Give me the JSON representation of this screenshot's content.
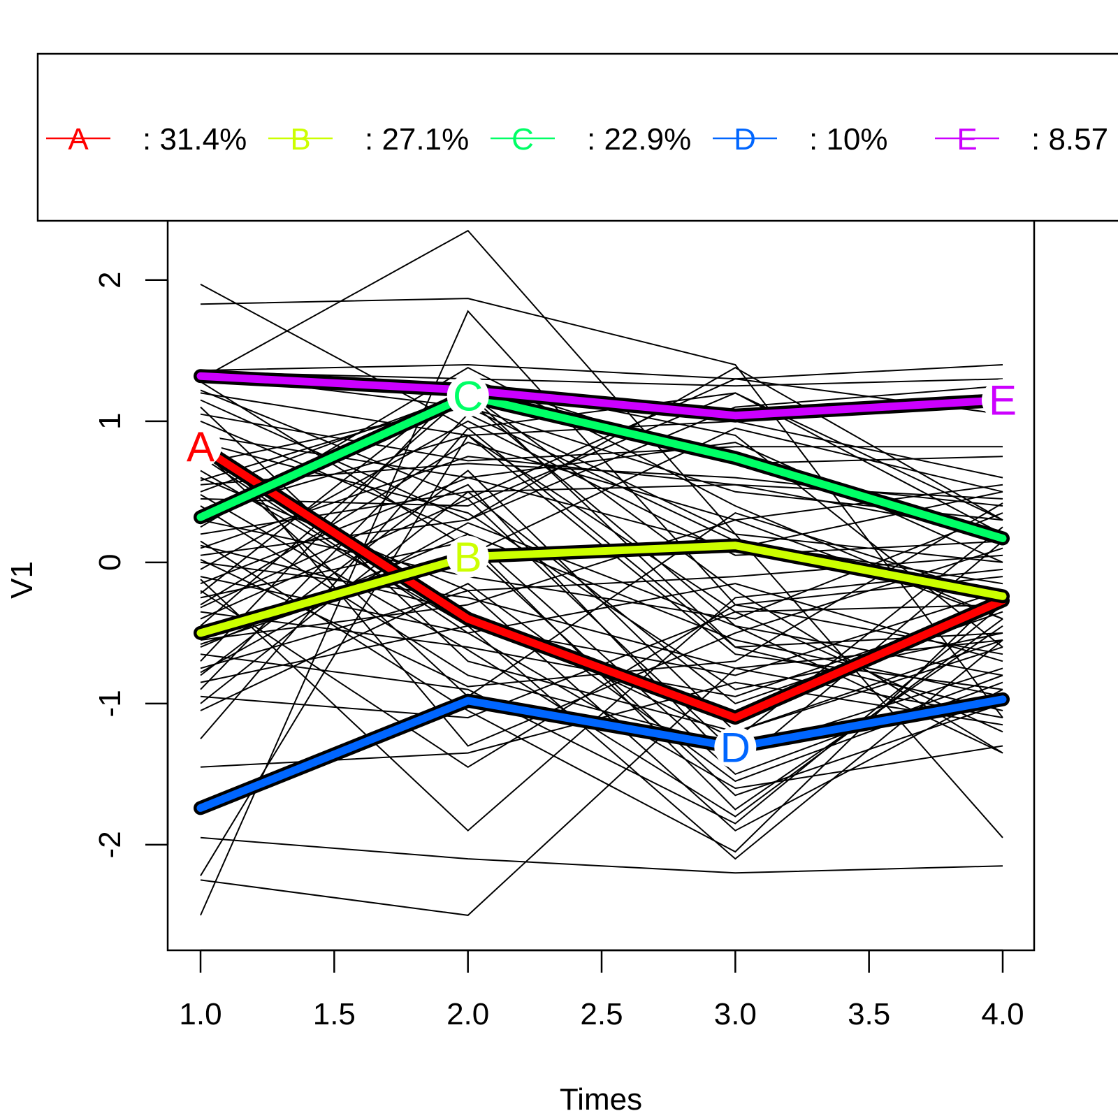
{
  "chart_data": {
    "type": "line",
    "xlabel": "Times",
    "ylabel": "V1",
    "x": [
      1,
      2,
      3,
      4
    ],
    "xlim": [
      1,
      4
    ],
    "ylim": [
      -2.55,
      2.4
    ],
    "x_ticks": [
      "1.0",
      "1.5",
      "2.0",
      "2.5",
      "3.0",
      "3.5",
      "4.0"
    ],
    "x_tick_values": [
      1.0,
      1.5,
      2.0,
      2.5,
      3.0,
      3.5,
      4.0
    ],
    "y_ticks": [
      "-2",
      "-1",
      "0",
      "1",
      "2"
    ],
    "y_tick_values": [
      -2,
      -1,
      0,
      1,
      2
    ],
    "grid": false,
    "legend_placement": "top",
    "legend": [
      {
        "label": "A",
        "text": ": 31.4%",
        "color": "#ff0000"
      },
      {
        "label": "B",
        "text": ": 27.1%",
        "color": "#ccff00"
      },
      {
        "label": "C",
        "text": ": 22.9%",
        "color": "#00ff66"
      },
      {
        "label": "D",
        "text": ":   10%",
        "color": "#0066ff"
      },
      {
        "label": "E",
        "text": ": 8.57",
        "color": "#cc00ff"
      }
    ],
    "clusters": [
      {
        "name": "A",
        "color": "#ff0000",
        "values": [
          0.82,
          -0.4,
          -1.1,
          -0.27
        ],
        "label_at": 1
      },
      {
        "name": "B",
        "color": "#ccff00",
        "values": [
          -0.5,
          0.04,
          0.12,
          -0.24
        ],
        "label_at": 2
      },
      {
        "name": "C",
        "color": "#00ff66",
        "values": [
          0.32,
          1.18,
          0.74,
          0.17
        ],
        "label_at": 2
      },
      {
        "name": "D",
        "color": "#0066ff",
        "values": [
          -1.74,
          -0.98,
          -1.31,
          -0.97
        ],
        "label_at": 3
      },
      {
        "name": "E",
        "color": "#cc00ff",
        "values": [
          1.32,
          1.22,
          1.04,
          1.15
        ],
        "label_at": 4
      }
    ],
    "trajectories": [
      [
        1.97,
        0.95,
        -0.6,
        -0.5
      ],
      [
        1.83,
        1.87,
        1.4,
        -1.1
      ],
      [
        1.3,
        2.35,
        0.2,
        -1.95
      ],
      [
        -2.5,
        1.78,
        -0.3,
        -0.1
      ],
      [
        1.36,
        1.4,
        1.3,
        1.4
      ],
      [
        1.35,
        1.3,
        1.25,
        1.3
      ],
      [
        1.33,
        1.1,
        0.5,
        0.3
      ],
      [
        1.2,
        0.9,
        -0.35,
        -0.3
      ],
      [
        1.1,
        -0.7,
        -1.2,
        -0.6
      ],
      [
        1.0,
        0.2,
        -1.5,
        -0.8
      ],
      [
        0.95,
        -1.3,
        -0.5,
        0.1
      ],
      [
        0.9,
        0.6,
        0.1,
        0.5
      ],
      [
        0.85,
        0.35,
        -0.9,
        -0.5
      ],
      [
        0.75,
        -0.5,
        -1.6,
        -1.3
      ],
      [
        0.7,
        1.1,
        0.2,
        0.0
      ],
      [
        0.6,
        -0.2,
        -1.9,
        -0.9
      ],
      [
        0.55,
        0.7,
        0.6,
        0.4
      ],
      [
        0.5,
        1.2,
        -0.2,
        -1.35
      ],
      [
        0.45,
        0.4,
        1.2,
        0.2
      ],
      [
        0.4,
        -0.8,
        -1.3,
        -1.0
      ],
      [
        0.35,
        0.9,
        1.0,
        0.6
      ],
      [
        0.3,
        -0.1,
        -0.4,
        0.35
      ],
      [
        0.25,
        1.38,
        0.4,
        -0.4
      ],
      [
        0.2,
        0.5,
        -1.0,
        -0.35
      ],
      [
        0.15,
        -1.05,
        -2.05,
        -0.2
      ],
      [
        0.1,
        0.75,
        0.55,
        0.45
      ],
      [
        0.05,
        0.3,
        1.38,
        0.3
      ],
      [
        0.0,
        -0.25,
        -0.75,
        -0.55
      ],
      [
        -0.05,
        1.0,
        0.05,
        0.15
      ],
      [
        -0.1,
        -0.5,
        -0.15,
        -0.7
      ],
      [
        -0.15,
        0.6,
        0.85,
        0.0
      ],
      [
        -0.2,
        -1.45,
        -0.3,
        -0.65
      ],
      [
        -0.25,
        0.15,
        -1.75,
        -0.45
      ],
      [
        -0.3,
        0.85,
        0.3,
        0.55
      ],
      [
        -0.35,
        -0.6,
        -0.95,
        -0.3
      ],
      [
        -0.4,
        0.45,
        -1.35,
        -0.75
      ],
      [
        -0.45,
        1.2,
        -0.6,
        -1.05
      ],
      [
        -0.55,
        -0.3,
        0.3,
        -0.4
      ],
      [
        -0.6,
        0.2,
        -0.55,
        -0.95
      ],
      [
        -0.65,
        -0.9,
        -1.85,
        -0.3
      ],
      [
        -0.7,
        1.3,
        0.7,
        0.75
      ],
      [
        -0.75,
        -0.2,
        -0.1,
        0.05
      ],
      [
        -0.8,
        0.65,
        -1.2,
        -0.55
      ],
      [
        -0.85,
        -0.45,
        -0.8,
        -0.2
      ],
      [
        -0.9,
        1.05,
        0.15,
        -0.15
      ],
      [
        -0.95,
        -1.1,
        -0.35,
        -1.2
      ],
      [
        -1.0,
        0.5,
        0.55,
        0.2
      ],
      [
        -1.05,
        -0.15,
        -1.55,
        -0.85
      ],
      [
        -1.25,
        0.95,
        1.2,
        0.3
      ],
      [
        -1.45,
        -1.35,
        -0.85,
        -1.15
      ],
      [
        -1.95,
        -2.1,
        -2.2,
        -2.15
      ],
      [
        -2.22,
        0.9,
        -0.65,
        -0.9
      ],
      [
        -2.25,
        -2.5,
        -0.75,
        -1.1
      ],
      [
        1.28,
        0.1,
        -1.65,
        -1.0
      ],
      [
        1.15,
        0.3,
        1.1,
        1.25
      ],
      [
        0.65,
        -0.45,
        -2.1,
        -0.55
      ],
      [
        -0.12,
        -1.9,
        -0.25,
        -0.05
      ],
      [
        0.58,
        1.15,
        -0.45,
        -0.8
      ],
      [
        -0.32,
        0.55,
        -1.45,
        0.15
      ],
      [
        0.8,
        -0.95,
        0.35,
        -0.25
      ],
      [
        -0.58,
        0.05,
        0.95,
        0.5
      ],
      [
        1.05,
        0.72,
        0.82,
        0.82
      ],
      [
        0.12,
        -0.35,
        -1.25,
        0.25
      ],
      [
        -0.22,
        1.28,
        0.9,
        -0.6
      ],
      [
        0.48,
        -0.62,
        -1.8,
        -0.4
      ],
      [
        -0.78,
        0.28,
        -0.45,
        -1.35
      ],
      [
        1.22,
        0.45,
        1.3,
        1.05
      ],
      [
        0.02,
        -0.88,
        -0.7,
        0.42
      ]
    ]
  }
}
